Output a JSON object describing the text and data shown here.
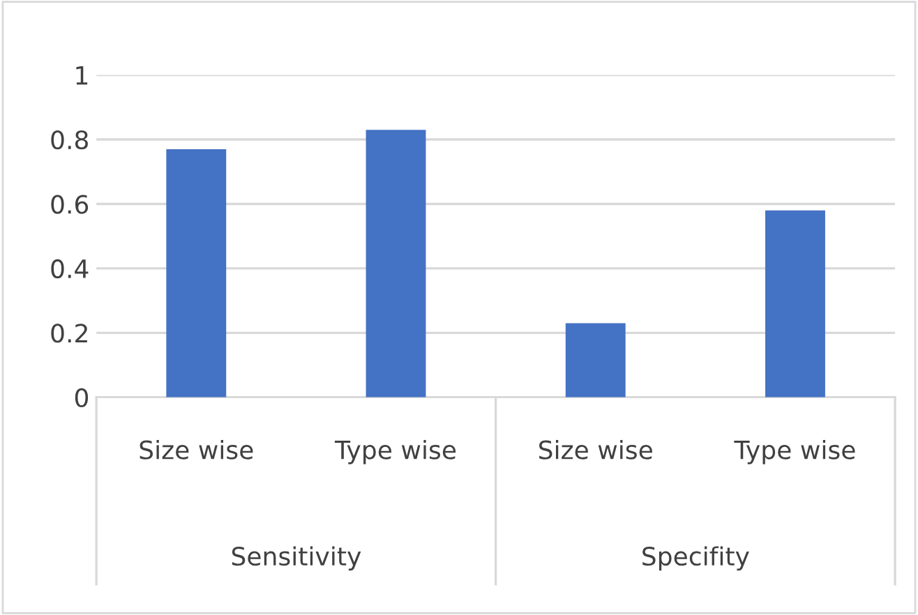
{
  "chart_data": {
    "type": "bar",
    "categories": [
      "Size wise",
      "Type wise",
      "Size wise",
      "Type wise"
    ],
    "values": [
      0.77,
      0.83,
      0.23,
      0.58
    ],
    "color": "#4472c4",
    "ylim": [
      0,
      1
    ],
    "yticks": [
      0,
      0.2,
      0.4,
      0.6,
      0.8,
      1
    ],
    "grid": "y",
    "annotations": [
      "Sensitivity",
      "Specifity"
    ]
  }
}
